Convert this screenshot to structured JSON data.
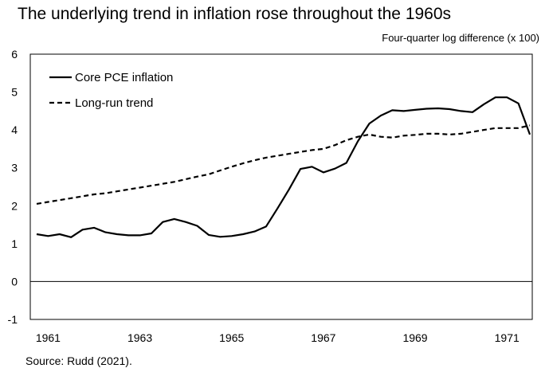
{
  "title": "The underlying trend in inflation rose throughout the 1960s",
  "unit_label": "Four-quarter log difference (x 100)",
  "source": "Source: Rudd (2021).",
  "chart_data": {
    "type": "line",
    "ylim": [
      -1,
      6
    ],
    "xlim": [
      1960.75,
      1971.5
    ],
    "yticks": [
      -1,
      0,
      1,
      2,
      3,
      4,
      5,
      6
    ],
    "xticks": [
      1961,
      1963,
      1965,
      1967,
      1969,
      1971
    ],
    "grid": false,
    "legend_position": "top-left",
    "series": [
      {
        "name": "Core PCE inflation",
        "style": "solid",
        "color": "#000000",
        "x": [
          1960.75,
          1961.0,
          1961.25,
          1961.5,
          1961.75,
          1962.0,
          1962.25,
          1962.5,
          1962.75,
          1963.0,
          1963.25,
          1963.5,
          1963.75,
          1964.0,
          1964.25,
          1964.5,
          1964.75,
          1965.0,
          1965.25,
          1965.5,
          1965.75,
          1966.0,
          1966.25,
          1966.5,
          1966.75,
          1967.0,
          1967.25,
          1967.5,
          1967.75,
          1968.0,
          1968.25,
          1968.5,
          1968.75,
          1969.0,
          1969.25,
          1969.5,
          1969.75,
          1970.0,
          1970.25,
          1970.5,
          1970.75,
          1971.0,
          1971.25,
          1971.5
        ],
        "values": [
          1.25,
          1.2,
          1.25,
          1.17,
          1.37,
          1.42,
          1.3,
          1.25,
          1.22,
          1.22,
          1.27,
          1.57,
          1.65,
          1.57,
          1.47,
          1.23,
          1.18,
          1.2,
          1.25,
          1.32,
          1.45,
          1.93,
          2.43,
          2.97,
          3.03,
          2.88,
          2.98,
          3.13,
          3.7,
          4.17,
          4.38,
          4.52,
          4.5,
          4.53,
          4.56,
          4.57,
          4.55,
          4.5,
          4.47,
          4.68,
          4.86,
          4.86,
          4.7,
          3.88
        ]
      },
      {
        "name": "Long-run trend",
        "style": "dashed",
        "color": "#000000",
        "x": [
          1960.75,
          1961.0,
          1961.25,
          1961.5,
          1961.75,
          1962.0,
          1962.25,
          1962.5,
          1962.75,
          1963.0,
          1963.25,
          1963.5,
          1963.75,
          1964.0,
          1964.25,
          1964.5,
          1964.75,
          1965.0,
          1965.25,
          1965.5,
          1965.75,
          1966.0,
          1966.25,
          1966.5,
          1966.75,
          1967.0,
          1967.25,
          1967.5,
          1967.75,
          1968.0,
          1968.25,
          1968.5,
          1968.75,
          1969.0,
          1969.25,
          1969.5,
          1969.75,
          1970.0,
          1970.25,
          1970.5,
          1970.75,
          1971.0,
          1971.25,
          1971.5
        ],
        "values": [
          2.05,
          2.1,
          2.15,
          2.2,
          2.25,
          2.3,
          2.33,
          2.38,
          2.43,
          2.48,
          2.53,
          2.58,
          2.63,
          2.7,
          2.77,
          2.83,
          2.93,
          3.03,
          3.12,
          3.2,
          3.27,
          3.32,
          3.37,
          3.42,
          3.47,
          3.5,
          3.6,
          3.73,
          3.82,
          3.88,
          3.82,
          3.8,
          3.85,
          3.87,
          3.9,
          3.9,
          3.88,
          3.9,
          3.95,
          4.0,
          4.05,
          4.05,
          4.05,
          4.12
        ]
      }
    ]
  }
}
